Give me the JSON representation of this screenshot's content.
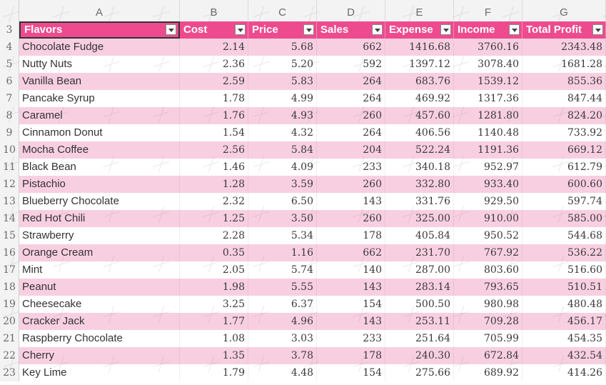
{
  "columns": [
    "A",
    "B",
    "C",
    "D",
    "E",
    "F",
    "G"
  ],
  "header_row_number": "3",
  "headers": [
    "Flavors",
    "Cost",
    "Price",
    "Sales",
    "Expense",
    "Income",
    "Total Profit"
  ],
  "rows": [
    {
      "n": "4",
      "cells": [
        "Chocolate Fudge",
        "2.14",
        "5.68",
        "662",
        "1416.68",
        "3760.16",
        "2343.48"
      ]
    },
    {
      "n": "5",
      "cells": [
        "Nutty Nuts",
        "2.36",
        "5.20",
        "592",
        "1397.12",
        "3078.40",
        "1681.28"
      ]
    },
    {
      "n": "6",
      "cells": [
        "Vanilla Bean",
        "2.59",
        "5.83",
        "264",
        "683.76",
        "1539.12",
        "855.36"
      ]
    },
    {
      "n": "7",
      "cells": [
        "Pancake Syrup",
        "1.78",
        "4.99",
        "264",
        "469.92",
        "1317.36",
        "847.44"
      ]
    },
    {
      "n": "8",
      "cells": [
        "Caramel",
        "1.76",
        "4.93",
        "260",
        "457.60",
        "1281.80",
        "824.20"
      ]
    },
    {
      "n": "9",
      "cells": [
        "Cinnamon Donut",
        "1.54",
        "4.32",
        "264",
        "406.56",
        "1140.48",
        "733.92"
      ]
    },
    {
      "n": "10",
      "cells": [
        "Mocha Coffee",
        "2.56",
        "5.84",
        "204",
        "522.24",
        "1191.36",
        "669.12"
      ]
    },
    {
      "n": "11",
      "cells": [
        "Black Bean",
        "1.46",
        "4.09",
        "233",
        "340.18",
        "952.97",
        "612.79"
      ]
    },
    {
      "n": "12",
      "cells": [
        "Pistachio",
        "1.28",
        "3.59",
        "260",
        "332.80",
        "933.40",
        "600.60"
      ]
    },
    {
      "n": "13",
      "cells": [
        "Blueberry Chocolate",
        "2.32",
        "6.50",
        "143",
        "331.76",
        "929.50",
        "597.74"
      ]
    },
    {
      "n": "14",
      "cells": [
        "Red Hot Chili",
        "1.25",
        "3.50",
        "260",
        "325.00",
        "910.00",
        "585.00"
      ]
    },
    {
      "n": "15",
      "cells": [
        "Strawberry",
        "2.28",
        "5.34",
        "178",
        "405.84",
        "950.52",
        "544.68"
      ]
    },
    {
      "n": "16",
      "cells": [
        "Orange Cream",
        "0.35",
        "1.16",
        "662",
        "231.70",
        "767.92",
        "536.22"
      ]
    },
    {
      "n": "17",
      "cells": [
        "Mint",
        "2.05",
        "5.74",
        "140",
        "287.00",
        "803.60",
        "516.60"
      ]
    },
    {
      "n": "18",
      "cells": [
        "Peanut",
        "1.98",
        "5.55",
        "143",
        "283.14",
        "793.65",
        "510.51"
      ]
    },
    {
      "n": "19",
      "cells": [
        "Cheesecake",
        "3.25",
        "6.37",
        "154",
        "500.50",
        "980.98",
        "480.48"
      ]
    },
    {
      "n": "20",
      "cells": [
        "Cracker Jack",
        "1.77",
        "4.96",
        "143",
        "253.11",
        "709.28",
        "456.17"
      ]
    },
    {
      "n": "21",
      "cells": [
        "Raspberry Chocolate",
        "1.08",
        "3.03",
        "233",
        "251.64",
        "705.99",
        "454.35"
      ]
    },
    {
      "n": "22",
      "cells": [
        "Cherry",
        "1.35",
        "3.78",
        "178",
        "240.30",
        "672.84",
        "432.54"
      ]
    },
    {
      "n": "23",
      "cells": [
        "Key Lime",
        "1.79",
        "4.48",
        "154",
        "275.66",
        "689.92",
        "414.26"
      ]
    }
  ],
  "colors": {
    "header": "#ee4b8f",
    "band": "#f8cfe1",
    "header_text": "#ffffff"
  }
}
